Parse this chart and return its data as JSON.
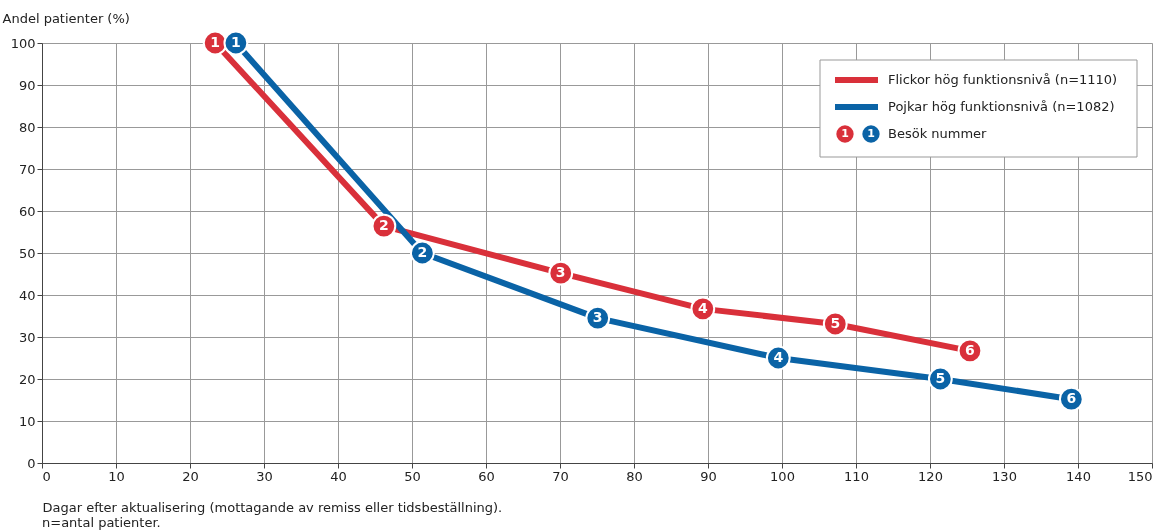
{
  "chart_data": {
    "type": "line",
    "xlabel": "Dagar efter aktualisering (mottagande av remiss eller tidsbeställning).",
    "ylabel": "Andel patienter (%)",
    "xlim": [
      0,
      150
    ],
    "xticks": [
      0,
      10,
      20,
      30,
      40,
      50,
      60,
      70,
      80,
      90,
      100,
      110,
      120,
      130,
      140,
      150
    ],
    "ylim": [
      0,
      100
    ],
    "yticks": [
      0,
      10,
      20,
      30,
      40,
      50,
      60,
      70,
      80,
      90,
      100
    ],
    "grid": true,
    "legend": "top right",
    "marker": "circle",
    "line_style": "solid",
    "series": [
      {
        "name": "Flickor hög funktionsnivå (n=1110)",
        "color": "#d9303a",
        "x": [
          23.4,
          46.2,
          70.1,
          89.3,
          107.2,
          125.4
        ],
        "values": [
          100,
          56.4,
          45.2,
          36.7,
          33.1,
          26.7
        ]
      },
      {
        "name": "Pojkar hög funktionsnivå (n=1082)",
        "color": "#0a63a6",
        "x": [
          26.2,
          51.4,
          75.1,
          99.5,
          121.4,
          139.1
        ],
        "values": [
          100,
          50,
          34.5,
          25,
          20,
          15.2
        ]
      }
    ],
    "annotations": [
      "Besök nummer",
      "n=antal patienter.",
      {
        "text": "1",
        "x": 23.4,
        "y": 100
      },
      {
        "text": "2",
        "x": 46.2,
        "y": 56.4
      },
      {
        "text": "3",
        "x": 70.1,
        "y": 45.2
      },
      {
        "text": "4",
        "x": 89.3,
        "y": 36.7
      },
      {
        "text": "5",
        "x": 107.2,
        "y": 33.1
      },
      {
        "text": "6",
        "x": 125.4,
        "y": 26.7
      },
      {
        "text": "1",
        "x": 26.2,
        "y": 100
      },
      {
        "text": "2",
        "x": 51.4,
        "y": 50
      },
      {
        "text": "3",
        "x": 75.1,
        "y": 34.5
      },
      {
        "text": "4",
        "x": 99.5,
        "y": 25
      },
      {
        "text": "5",
        "x": 121.4,
        "y": 20
      },
      {
        "text": "6",
        "x": 139.1,
        "y": 15.2
      }
    ]
  }
}
